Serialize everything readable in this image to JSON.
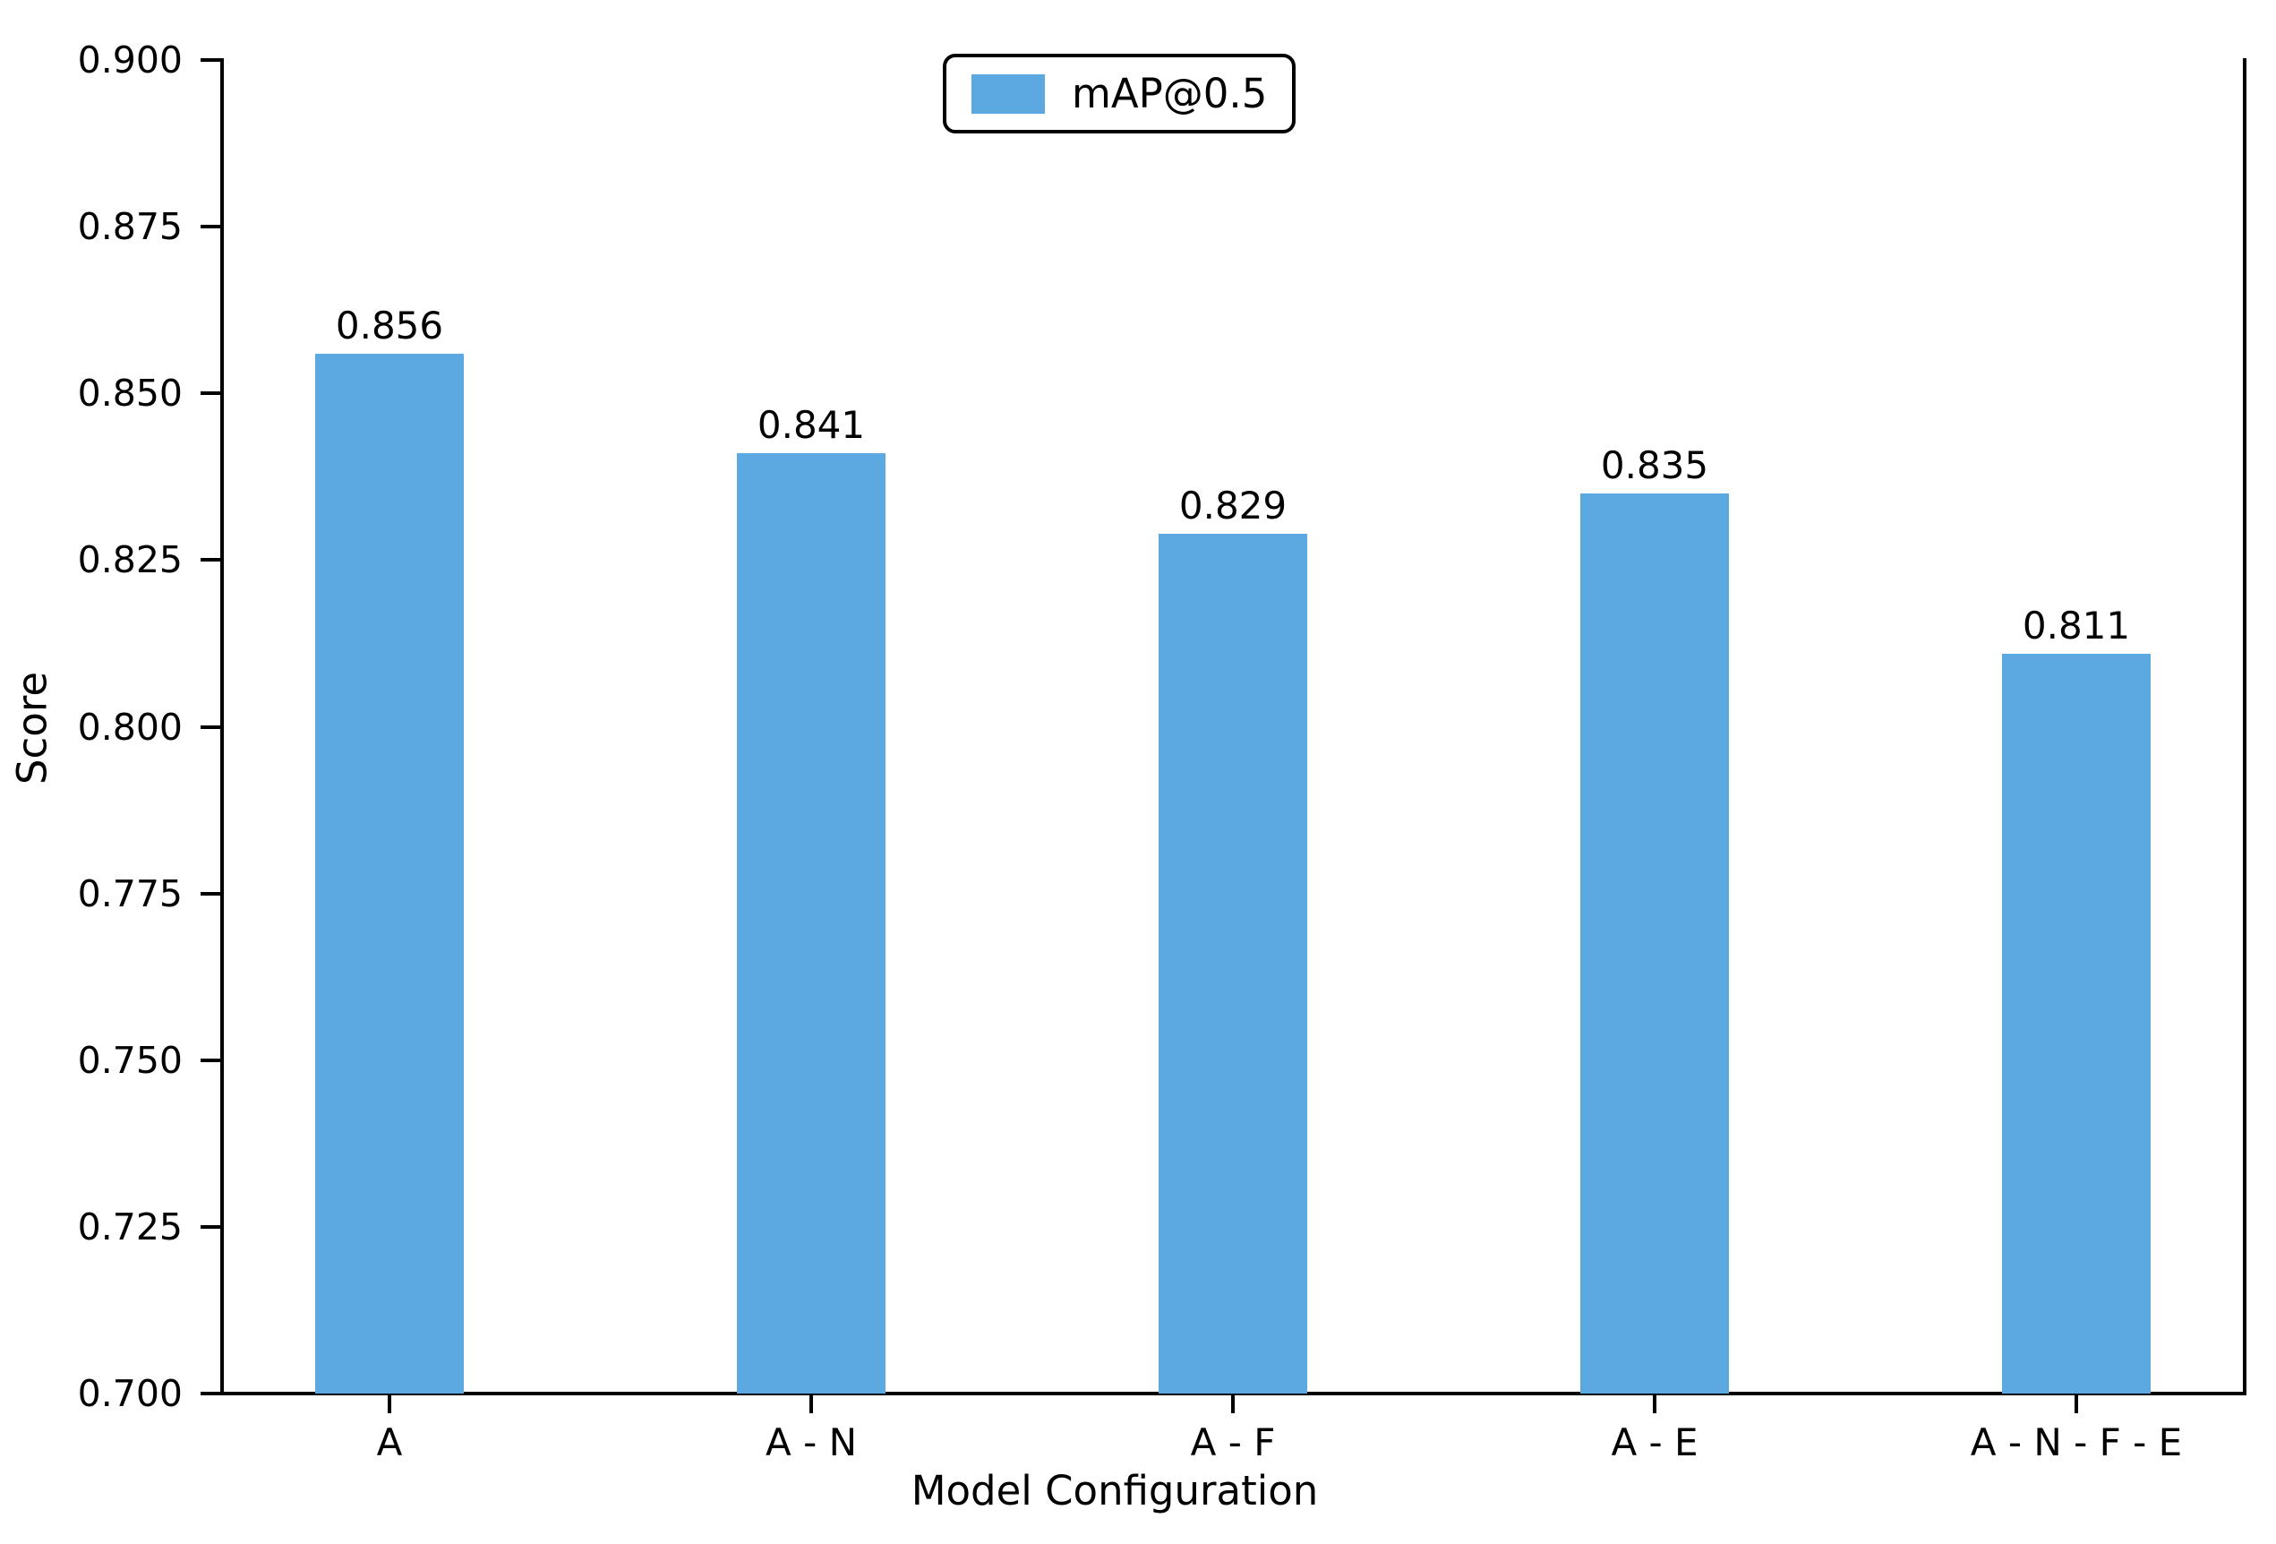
{
  "chart_data": {
    "type": "bar",
    "title": "",
    "xlabel": "Model Configuration",
    "ylabel": "Score",
    "categories": [
      "A",
      "A - N",
      "A - F",
      "A - E",
      "A - N - F - E"
    ],
    "series": [
      {
        "name": "mAP@0.5",
        "values": [
          0.856,
          0.841,
          0.829,
          0.835,
          0.811
        ]
      }
    ],
    "value_labels": [
      "0.856",
      "0.841",
      "0.829",
      "0.835",
      "0.811"
    ],
    "ylim": [
      0.7,
      0.9
    ],
    "yticks": [
      0.7,
      0.725,
      0.75,
      0.775,
      0.8,
      0.825,
      0.85,
      0.875,
      0.9
    ],
    "ytick_labels": [
      "0.700",
      "0.725",
      "0.750",
      "0.775",
      "0.800",
      "0.825",
      "0.850",
      "0.875",
      "0.900"
    ],
    "grid": false,
    "legend": {
      "location": "upper center",
      "entries": [
        {
          "label": "mAP@0.5",
          "color": "#5BA9E0"
        }
      ]
    },
    "bar_color": "#5BA9E0",
    "spine_color": "#000000",
    "background_color": "#FFFFFF"
  }
}
